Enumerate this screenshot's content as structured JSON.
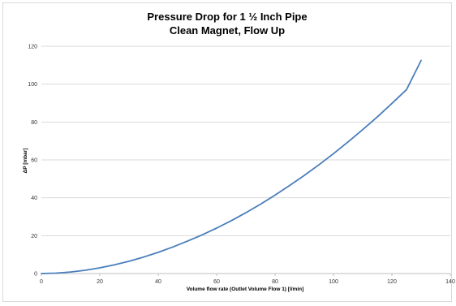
{
  "chart_data": {
    "type": "line",
    "title": "Pressure Drop for 1 ½ Inch Pipe",
    "subtitle": "Clean Magnet, Flow Up",
    "xlabel": "Volume flow rate (Outlet Volume Flow 1) [l/min]",
    "ylabel": "ΔP [mbar]",
    "xlim": [
      0,
      140
    ],
    "ylim": [
      0,
      120
    ],
    "xticks": [
      "0",
      "20",
      "40",
      "60",
      "80",
      "100",
      "120",
      "140"
    ],
    "yticks": [
      "0",
      "20",
      "40",
      "60",
      "80",
      "100",
      "120"
    ],
    "grid": "horizontal",
    "legend": "none",
    "series": [
      {
        "color": "#4a7ebb",
        "x": [
          0,
          5,
          10,
          15,
          20,
          25,
          30,
          35,
          40,
          45,
          50,
          55,
          60,
          65,
          70,
          75,
          80,
          85,
          90,
          95,
          100,
          105,
          110,
          115,
          120,
          125,
          130
        ],
        "y": [
          0,
          0.2,
          0.8,
          1.7,
          3.0,
          4.6,
          6.5,
          8.7,
          11.2,
          14.0,
          17.1,
          20.4,
          24.0,
          27.9,
          32.1,
          36.6,
          41.4,
          46.5,
          51.8,
          57.4,
          63.3,
          69.5,
          76.0,
          82.7,
          89.8,
          97.1,
          112.5
        ]
      }
    ]
  }
}
